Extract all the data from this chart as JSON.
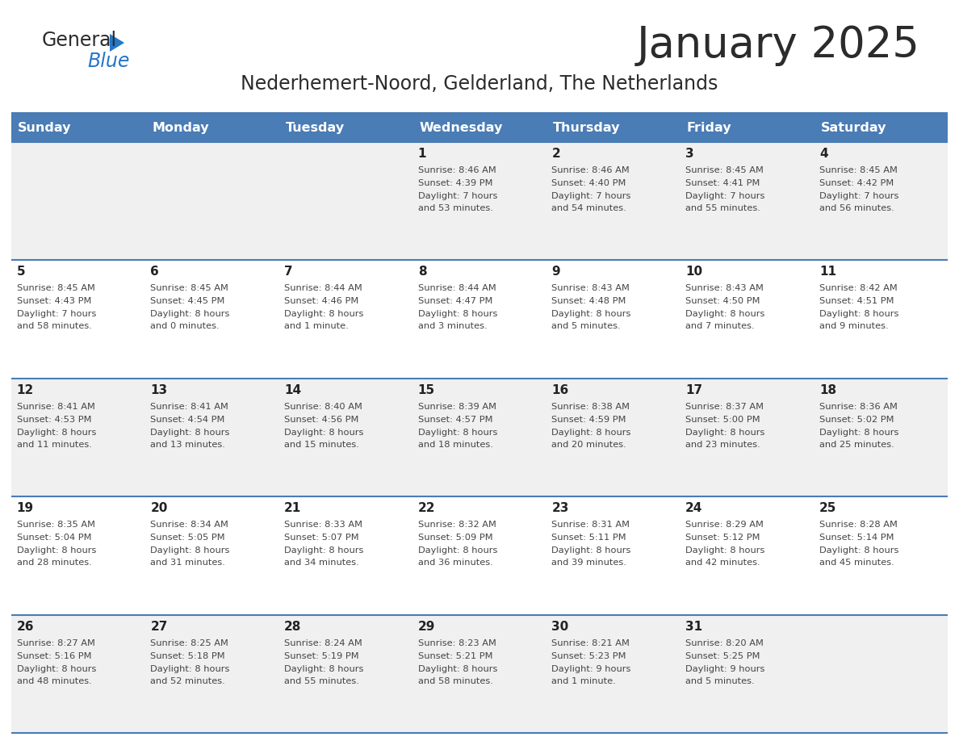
{
  "title": "January 2025",
  "subtitle": "Nederhemert-Noord, Gelderland, The Netherlands",
  "header_color": "#4a7cb5",
  "header_text_color": "#ffffff",
  "border_color": "#4a7cb5",
  "days_of_week": [
    "Sunday",
    "Monday",
    "Tuesday",
    "Wednesday",
    "Thursday",
    "Friday",
    "Saturday"
  ],
  "title_color": "#2b2b2b",
  "subtitle_color": "#2b2b2b",
  "day_num_color": "#222222",
  "cell_text_color": "#444444",
  "row_bg_colors": [
    "#f0f0f0",
    "#ffffff",
    "#f0f0f0",
    "#ffffff",
    "#f0f0f0"
  ],
  "weeks": [
    [
      {
        "day": "",
        "sunrise": "",
        "sunset": "",
        "daylight": ""
      },
      {
        "day": "",
        "sunrise": "",
        "sunset": "",
        "daylight": ""
      },
      {
        "day": "",
        "sunrise": "",
        "sunset": "",
        "daylight": ""
      },
      {
        "day": "1",
        "sunrise": "8:46 AM",
        "sunset": "4:39 PM",
        "daylight": "7 hours\nand 53 minutes."
      },
      {
        "day": "2",
        "sunrise": "8:46 AM",
        "sunset": "4:40 PM",
        "daylight": "7 hours\nand 54 minutes."
      },
      {
        "day": "3",
        "sunrise": "8:45 AM",
        "sunset": "4:41 PM",
        "daylight": "7 hours\nand 55 minutes."
      },
      {
        "day": "4",
        "sunrise": "8:45 AM",
        "sunset": "4:42 PM",
        "daylight": "7 hours\nand 56 minutes."
      }
    ],
    [
      {
        "day": "5",
        "sunrise": "8:45 AM",
        "sunset": "4:43 PM",
        "daylight": "7 hours\nand 58 minutes."
      },
      {
        "day": "6",
        "sunrise": "8:45 AM",
        "sunset": "4:45 PM",
        "daylight": "8 hours\nand 0 minutes."
      },
      {
        "day": "7",
        "sunrise": "8:44 AM",
        "sunset": "4:46 PM",
        "daylight": "8 hours\nand 1 minute."
      },
      {
        "day": "8",
        "sunrise": "8:44 AM",
        "sunset": "4:47 PM",
        "daylight": "8 hours\nand 3 minutes."
      },
      {
        "day": "9",
        "sunrise": "8:43 AM",
        "sunset": "4:48 PM",
        "daylight": "8 hours\nand 5 minutes."
      },
      {
        "day": "10",
        "sunrise": "8:43 AM",
        "sunset": "4:50 PM",
        "daylight": "8 hours\nand 7 minutes."
      },
      {
        "day": "11",
        "sunrise": "8:42 AM",
        "sunset": "4:51 PM",
        "daylight": "8 hours\nand 9 minutes."
      }
    ],
    [
      {
        "day": "12",
        "sunrise": "8:41 AM",
        "sunset": "4:53 PM",
        "daylight": "8 hours\nand 11 minutes."
      },
      {
        "day": "13",
        "sunrise": "8:41 AM",
        "sunset": "4:54 PM",
        "daylight": "8 hours\nand 13 minutes."
      },
      {
        "day": "14",
        "sunrise": "8:40 AM",
        "sunset": "4:56 PM",
        "daylight": "8 hours\nand 15 minutes."
      },
      {
        "day": "15",
        "sunrise": "8:39 AM",
        "sunset": "4:57 PM",
        "daylight": "8 hours\nand 18 minutes."
      },
      {
        "day": "16",
        "sunrise": "8:38 AM",
        "sunset": "4:59 PM",
        "daylight": "8 hours\nand 20 minutes."
      },
      {
        "day": "17",
        "sunrise": "8:37 AM",
        "sunset": "5:00 PM",
        "daylight": "8 hours\nand 23 minutes."
      },
      {
        "day": "18",
        "sunrise": "8:36 AM",
        "sunset": "5:02 PM",
        "daylight": "8 hours\nand 25 minutes."
      }
    ],
    [
      {
        "day": "19",
        "sunrise": "8:35 AM",
        "sunset": "5:04 PM",
        "daylight": "8 hours\nand 28 minutes."
      },
      {
        "day": "20",
        "sunrise": "8:34 AM",
        "sunset": "5:05 PM",
        "daylight": "8 hours\nand 31 minutes."
      },
      {
        "day": "21",
        "sunrise": "8:33 AM",
        "sunset": "5:07 PM",
        "daylight": "8 hours\nand 34 minutes."
      },
      {
        "day": "22",
        "sunrise": "8:32 AM",
        "sunset": "5:09 PM",
        "daylight": "8 hours\nand 36 minutes."
      },
      {
        "day": "23",
        "sunrise": "8:31 AM",
        "sunset": "5:11 PM",
        "daylight": "8 hours\nand 39 minutes."
      },
      {
        "day": "24",
        "sunrise": "8:29 AM",
        "sunset": "5:12 PM",
        "daylight": "8 hours\nand 42 minutes."
      },
      {
        "day": "25",
        "sunrise": "8:28 AM",
        "sunset": "5:14 PM",
        "daylight": "8 hours\nand 45 minutes."
      }
    ],
    [
      {
        "day": "26",
        "sunrise": "8:27 AM",
        "sunset": "5:16 PM",
        "daylight": "8 hours\nand 48 minutes."
      },
      {
        "day": "27",
        "sunrise": "8:25 AM",
        "sunset": "5:18 PM",
        "daylight": "8 hours\nand 52 minutes."
      },
      {
        "day": "28",
        "sunrise": "8:24 AM",
        "sunset": "5:19 PM",
        "daylight": "8 hours\nand 55 minutes."
      },
      {
        "day": "29",
        "sunrise": "8:23 AM",
        "sunset": "5:21 PM",
        "daylight": "8 hours\nand 58 minutes."
      },
      {
        "day": "30",
        "sunrise": "8:21 AM",
        "sunset": "5:23 PM",
        "daylight": "9 hours\nand 1 minute."
      },
      {
        "day": "31",
        "sunrise": "8:20 AM",
        "sunset": "5:25 PM",
        "daylight": "9 hours\nand 5 minutes."
      },
      {
        "day": "",
        "sunrise": "",
        "sunset": "",
        "daylight": ""
      }
    ]
  ]
}
